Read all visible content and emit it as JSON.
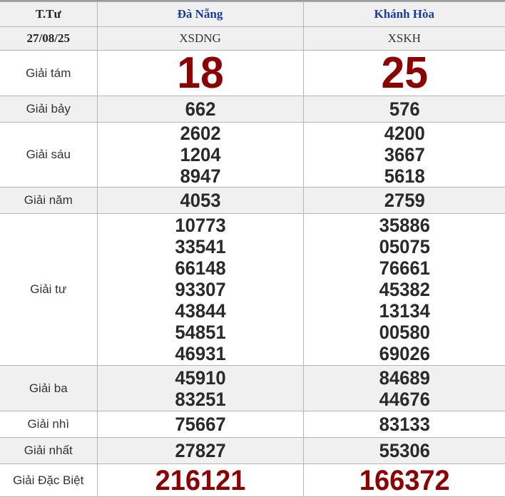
{
  "header": {
    "col0": "T.Tư",
    "provinces": [
      "Đà Nẵng",
      "Khánh Hòa"
    ]
  },
  "date_row": {
    "date": "27/08/25",
    "codes": [
      "XSDNG",
      "XSKH"
    ]
  },
  "prizes": [
    {
      "label": "Giải tám",
      "values": [
        [
          "18"
        ],
        [
          "25"
        ]
      ]
    },
    {
      "label": "Giải bảy",
      "values": [
        [
          "662"
        ],
        [
          "576"
        ]
      ]
    },
    {
      "label": "Giải sáu",
      "values": [
        [
          "2602",
          "1204",
          "8947"
        ],
        [
          "4200",
          "3667",
          "5618"
        ]
      ]
    },
    {
      "label": "Giải năm",
      "values": [
        [
          "4053"
        ],
        [
          "2759"
        ]
      ]
    },
    {
      "label": "Giải tư",
      "values": [
        [
          "10773",
          "33541",
          "66148",
          "93307",
          "43844",
          "54851",
          "46931"
        ],
        [
          "35886",
          "05075",
          "76661",
          "45382",
          "13134",
          "00580",
          "69026"
        ]
      ]
    },
    {
      "label": "Giải ba",
      "values": [
        [
          "45910",
          "83251"
        ],
        [
          "84689",
          "44676"
        ]
      ]
    },
    {
      "label": "Giải nhì",
      "values": [
        [
          "75667"
        ],
        [
          "83133"
        ]
      ]
    },
    {
      "label": "Giải nhất",
      "values": [
        [
          "27827"
        ],
        [
          "55306"
        ]
      ]
    },
    {
      "label": "Giải Đặc Biệt",
      "values": [
        [
          "216121"
        ],
        [
          "166372"
        ]
      ]
    }
  ],
  "colors": {
    "header_text": "#1a3b9e",
    "highlight": "#8b0000",
    "row_alt": "#f0f0f0"
  }
}
